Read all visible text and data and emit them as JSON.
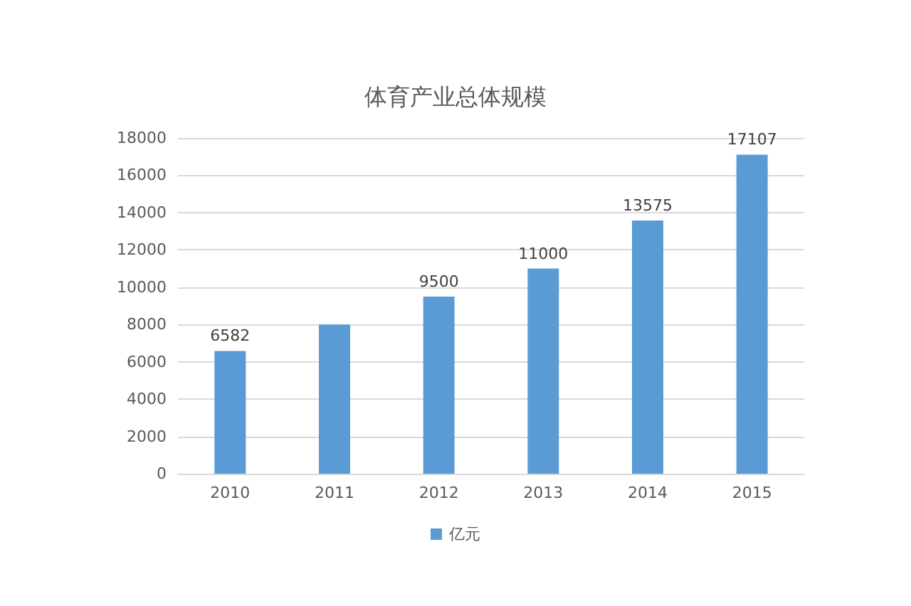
{
  "chart_data": {
    "type": "bar",
    "title": "体育产业总体规模",
    "categories": [
      "2010",
      "2011",
      "2012",
      "2013",
      "2014",
      "2015"
    ],
    "series": [
      {
        "name": "亿元",
        "color": "#5b9bd5",
        "values": [
          6582,
          8000,
          9500,
          11000,
          13575,
          17107
        ]
      }
    ],
    "value_labels": [
      "6582",
      null,
      "9500",
      "11000",
      "13575",
      "17107"
    ],
    "ylim": [
      0,
      18000
    ],
    "yticks": [
      0,
      2000,
      4000,
      6000,
      8000,
      10000,
      12000,
      14000,
      16000,
      18000
    ],
    "grid": "y",
    "legend": "bottom"
  }
}
